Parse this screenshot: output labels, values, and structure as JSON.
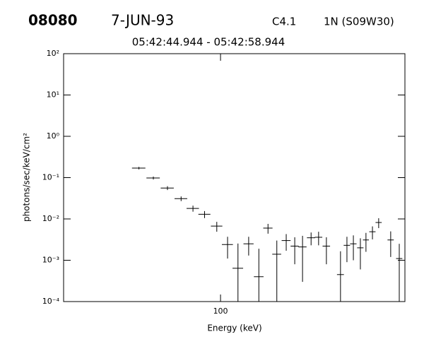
{
  "chart_data": {
    "type": "errorbar",
    "header": {
      "id": "08080",
      "date": "7-JUN-93",
      "class": "C4.1",
      "location": "1N (S09W30)"
    },
    "title": "05:42:44.944 - 05:42:58.944",
    "x_label": "Energy (keV)",
    "y_label": "photons/sec/keV/cm²",
    "x_log": true,
    "y_log": true,
    "color": "#000000",
    "xlim": [
      18,
      750
    ],
    "xticks": [
      100
    ],
    "ylim": [
      0.0001,
      100
    ],
    "yticks": [
      {
        "value": 0.0001,
        "label": "10⁻⁴"
      },
      {
        "value": 0.001,
        "label": "10⁻³"
      },
      {
        "value": 0.01,
        "label": "10⁻²"
      },
      {
        "value": 0.1,
        "label": "10⁻¹"
      },
      {
        "value": 1,
        "label": "10⁰"
      },
      {
        "value": 10,
        "label": "10¹"
      },
      {
        "value": 100,
        "label": "10²"
      }
    ],
    "x": [
      41,
      48,
      56,
      65,
      74,
      84,
      96,
      108,
      121,
      136,
      152,
      168,
      185,
      205,
      225,
      245,
      269,
      292,
      318,
      371,
      398,
      427,
      461,
      490,
      526,
      563,
      642,
      705
    ],
    "xerr": [
      3,
      3.5,
      4,
      4.5,
      5,
      5.5,
      6,
      6.5,
      7,
      7.5,
      8,
      8.5,
      9,
      10,
      10,
      11,
      12,
      12,
      13,
      14,
      14,
      15,
      16,
      16,
      18,
      19,
      22,
      24
    ],
    "values": [
      0.17,
      0.098,
      0.056,
      0.031,
      0.018,
      0.013,
      0.0067,
      0.0024,
      0.00064,
      0.0025,
      0.0004,
      0.006,
      0.0014,
      0.003,
      0.0022,
      0.0021,
      0.0035,
      0.0036,
      0.0022,
      0.00045,
      0.0023,
      0.0025,
      0.002,
      0.0031,
      0.0049,
      0.0082,
      0.0031,
      0.0011
    ],
    "yerr": [
      0.012,
      0.008,
      0.006,
      0.004,
      0.003,
      0.0025,
      0.0018,
      0.0013,
      0.0019,
      0.0012,
      0.0015,
      0.0016,
      0.0016,
      0.0013,
      0.0014,
      0.0018,
      0.0012,
      0.0013,
      0.0014,
      0.0012,
      0.0014,
      0.0015,
      0.0014,
      0.0015,
      0.0017,
      0.0022,
      0.0019,
      0.0014
    ]
  }
}
